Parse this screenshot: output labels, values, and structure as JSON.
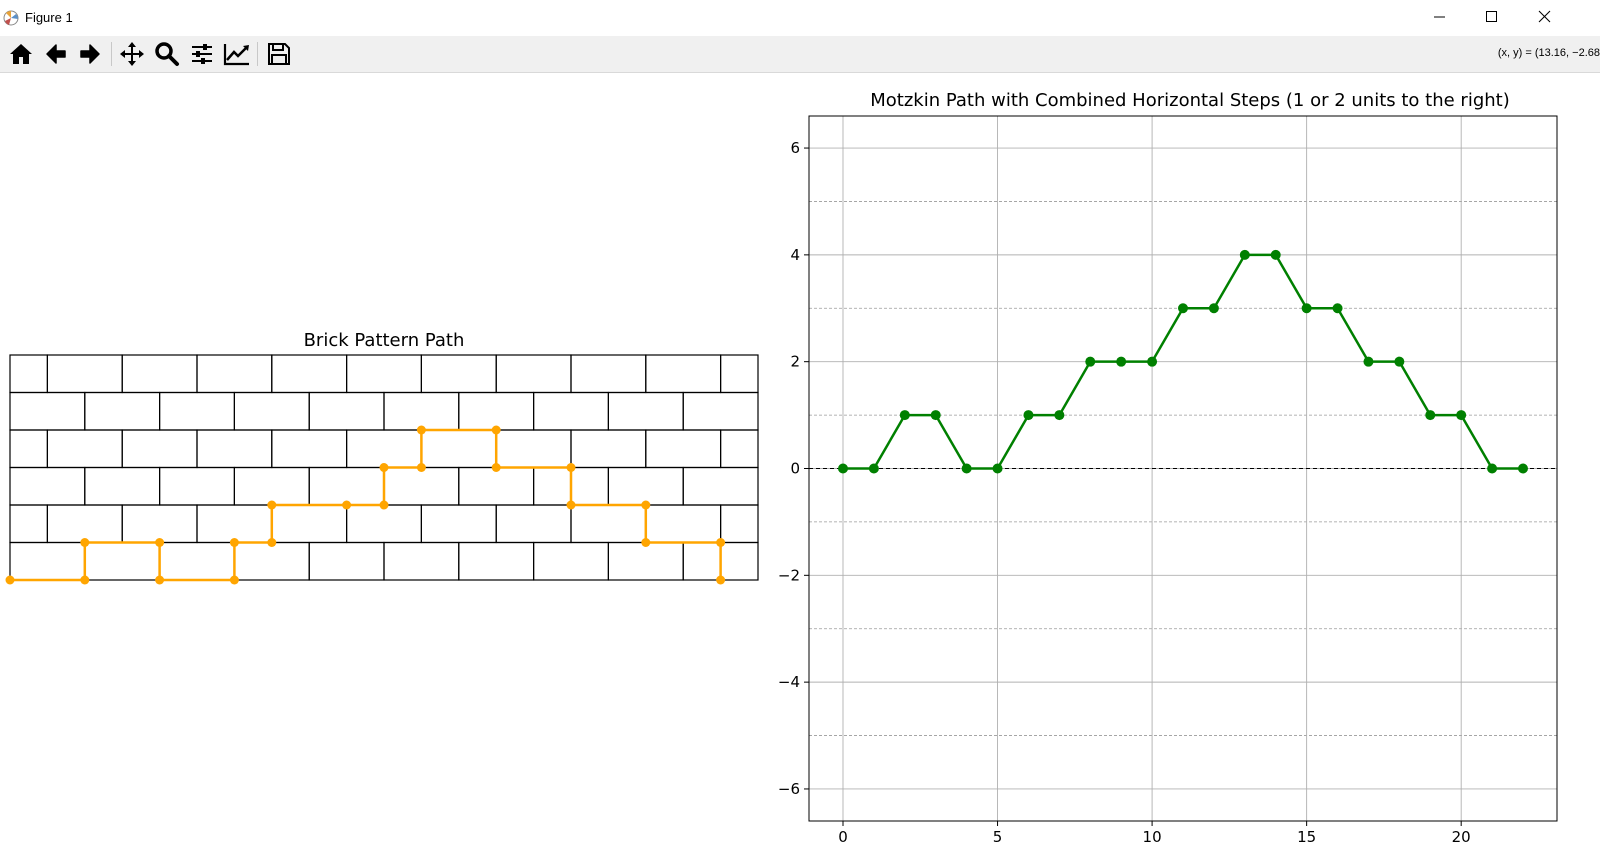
{
  "window": {
    "title": "Figure 1",
    "controls": {
      "minimize_icon": "minimize-icon",
      "maximize_icon": "maximize-icon",
      "close_icon": "close-icon"
    }
  },
  "toolbar": {
    "buttons": [
      "home-icon",
      "back-arrow-icon",
      "forward-arrow-icon",
      "pan-icon",
      "zoom-icon",
      "configure-subplots-icon",
      "edit-axis-icon",
      "save-icon"
    ],
    "coordinates": "(x, y) = (13.16, −2.68"
  },
  "colors": {
    "brick_path": "#ffa500",
    "motzkin_path": "#008000",
    "zero_line": "#000000"
  },
  "chart_data": [
    {
      "type": "line",
      "title": "Brick Pattern Path",
      "rows": 6,
      "columns": 10,
      "row_offset": 0.5,
      "axes_visible": false,
      "series": [
        {
          "x": [
            0,
            1,
            1,
            2,
            2,
            3,
            3,
            3.5,
            3.5,
            4.5,
            5,
            5,
            5.5,
            5.5,
            6.5,
            6.5,
            7.5,
            7.5,
            8.5,
            8.5,
            9.5,
            9.5
          ],
          "y": [
            0,
            0,
            1,
            1,
            0,
            0,
            1,
            1,
            2,
            2,
            2,
            3,
            3,
            4,
            4,
            3,
            3,
            2,
            2,
            1,
            1,
            0
          ]
        }
      ]
    },
    {
      "type": "line",
      "title": "Motzkin Path with Combined Horizontal Steps (1 or 2 units to the right)",
      "xlabel": "",
      "ylabel": "",
      "x_ticks": [
        "0",
        "5",
        "10",
        "15",
        "20"
      ],
      "y_ticks": [
        "−6",
        "−4",
        "−2",
        "0",
        "2",
        "4",
        "6"
      ],
      "xlim": [
        -1.1,
        23.1
      ],
      "ylim": [
        -6.6,
        6.6
      ],
      "grid": true,
      "minor_grid_y": true,
      "reference_line_y": 0,
      "series": [
        {
          "x": [
            0,
            1,
            2,
            3,
            4,
            5,
            6,
            7,
            8,
            9,
            10,
            11,
            12,
            13,
            14,
            15,
            16,
            17,
            18,
            19,
            20,
            21,
            22
          ],
          "y": [
            0,
            0,
            1,
            1,
            0,
            0,
            1,
            1,
            2,
            2,
            2,
            3,
            3,
            4,
            4,
            3,
            3,
            2,
            2,
            1,
            1,
            0,
            0
          ]
        }
      ]
    }
  ]
}
